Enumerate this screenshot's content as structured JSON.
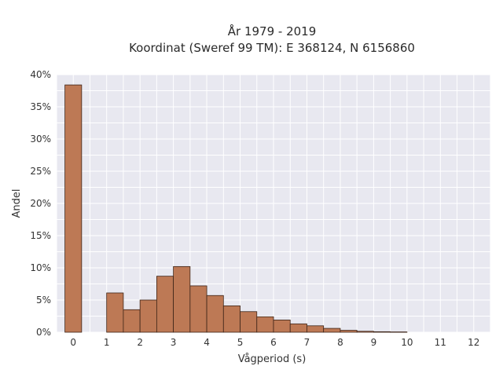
{
  "chart_data": {
    "type": "bar",
    "title_line1": "År 1979 - 2019",
    "title_line2": "Koordinat (Sweref 99 TM): E 368124, N 6156860",
    "xlabel": "Vågperiod (s)",
    "ylabel": "Andel",
    "xlim": [
      -0.5,
      12.5
    ],
    "ylim": [
      0,
      40
    ],
    "grid": true,
    "x_ticks": [
      0,
      1,
      2,
      3,
      4,
      5,
      6,
      7,
      8,
      9,
      10,
      11,
      12
    ],
    "y_ticks": [
      0,
      5,
      10,
      15,
      20,
      25,
      30,
      35,
      40
    ],
    "y_tick_labels": [
      "0%",
      "5%",
      "10%",
      "15%",
      "20%",
      "25%",
      "30%",
      "35%",
      "40%"
    ],
    "bin_width": 0.5,
    "bins": [
      {
        "start": -0.25,
        "value": 38.4
      },
      {
        "start": 1.0,
        "value": 6.1
      },
      {
        "start": 1.5,
        "value": 3.5
      },
      {
        "start": 2.0,
        "value": 5.0
      },
      {
        "start": 2.5,
        "value": 8.7
      },
      {
        "start": 3.0,
        "value": 10.2
      },
      {
        "start": 3.5,
        "value": 7.2
      },
      {
        "start": 4.0,
        "value": 5.7
      },
      {
        "start": 4.5,
        "value": 4.1
      },
      {
        "start": 5.0,
        "value": 3.2
      },
      {
        "start": 5.5,
        "value": 2.4
      },
      {
        "start": 6.0,
        "value": 1.9
      },
      {
        "start": 6.5,
        "value": 1.3
      },
      {
        "start": 7.0,
        "value": 1.0
      },
      {
        "start": 7.5,
        "value": 0.6
      },
      {
        "start": 8.0,
        "value": 0.3
      },
      {
        "start": 8.5,
        "value": 0.15
      },
      {
        "start": 9.0,
        "value": 0.08
      },
      {
        "start": 9.5,
        "value": 0.05
      }
    ],
    "colors": {
      "bar_fill": "#bd7955",
      "bar_stroke": "#3d2418",
      "plot_bg": "#e8e8f0",
      "grid": "#ffffff"
    }
  }
}
